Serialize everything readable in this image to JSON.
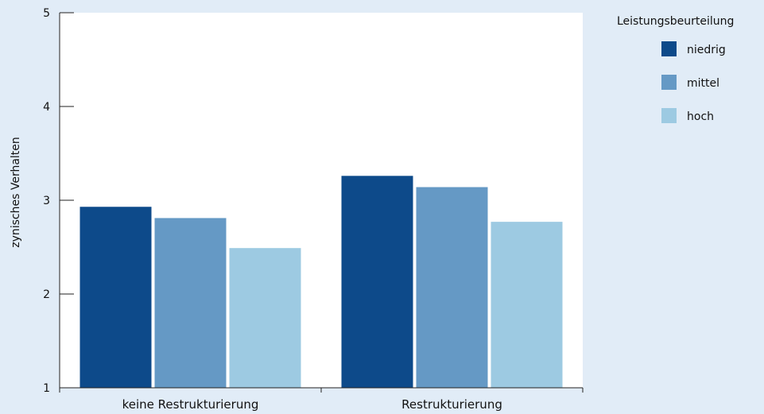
{
  "chart_data": {
    "type": "bar",
    "title": "",
    "xlabel": "",
    "ylabel": "zynisches Verhalten",
    "ylim": [
      1,
      5
    ],
    "yticks": [
      1,
      2,
      3,
      4,
      5
    ],
    "categories": [
      "keine Restrukturierung",
      "Restrukturierung"
    ],
    "legend": {
      "title": "Leistungsbeurteilung",
      "placement": "top-right"
    },
    "grid": false,
    "series": [
      {
        "name": "niedrig",
        "color": "#0d4a8a",
        "values": [
          2.93,
          3.26
        ]
      },
      {
        "name": "mittel",
        "color": "#6599c5",
        "values": [
          2.81,
          3.14
        ]
      },
      {
        "name": "hoch",
        "color": "#9dcae2",
        "values": [
          2.49,
          2.77
        ]
      }
    ]
  }
}
